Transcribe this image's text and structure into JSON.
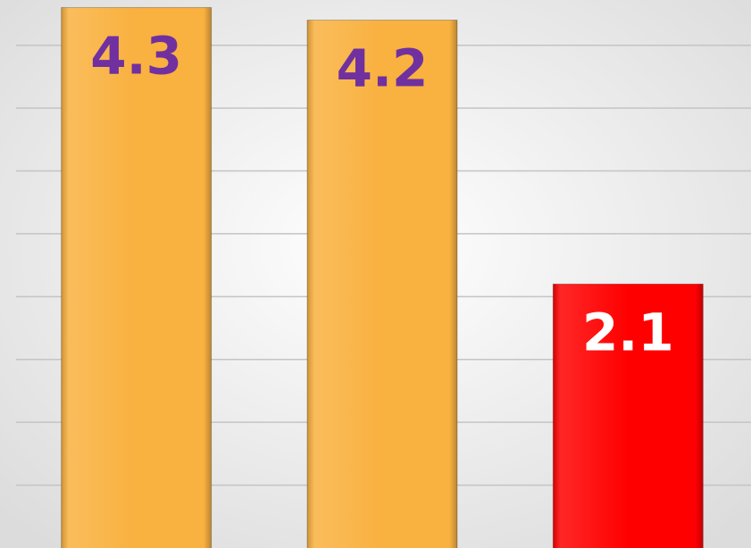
{
  "chart_data": {
    "type": "bar",
    "categories": [
      null,
      null,
      null
    ],
    "values": [
      4.3,
      4.2,
      2.1
    ],
    "colors": [
      "#f9b13f",
      "#f9b13f",
      "#ff0000"
    ],
    "label_colors": [
      "#7030a0",
      "#7030a0",
      "#ffffff"
    ],
    "ylim": [
      0,
      4.36
    ],
    "yticks": [
      0.5,
      1,
      1.5,
      2,
      2.5,
      3,
      3.5,
      4
    ],
    "grid": true
  }
}
